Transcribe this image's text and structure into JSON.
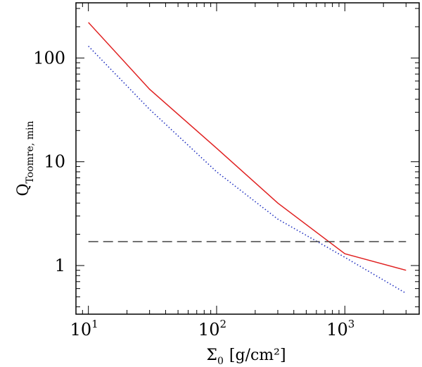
{
  "chart_data": {
    "type": "line",
    "xscale": "log",
    "yscale": "log",
    "xlim": [
      8,
      3800
    ],
    "ylim": [
      0.34,
      340
    ],
    "grid": false,
    "legend": "none",
    "x_ticks": [
      {
        "value": 10,
        "base": "10",
        "exp": "1"
      },
      {
        "value": 100,
        "base": "10",
        "exp": "2"
      },
      {
        "value": 1000,
        "base": "10",
        "exp": "3"
      }
    ],
    "y_ticks": [
      {
        "value": 1,
        "label": "1"
      },
      {
        "value": 10,
        "label": "10"
      },
      {
        "value": 100,
        "label": "100"
      }
    ],
    "xlabel": {
      "symbol": "Σ",
      "sub": "0",
      "rest": "[g/cm²]"
    },
    "ylabel": {
      "symbol": "Q",
      "sub": "Toomre, min"
    },
    "series": [
      {
        "style": "solid",
        "color": "#e02020",
        "x": [
          10,
          30,
          100,
          300,
          1000,
          3000
        ],
        "y": [
          220,
          50,
          13.5,
          4.0,
          1.3,
          0.9
        ]
      },
      {
        "style": "dotted",
        "color": "#2030c0",
        "x": [
          10,
          30,
          100,
          300,
          1000,
          3000
        ],
        "y": [
          130,
          32,
          8.0,
          2.8,
          1.2,
          0.54
        ]
      },
      {
        "style": "dashed",
        "color": "#444444",
        "x": [
          10,
          3000
        ],
        "y": [
          1.7,
          1.7
        ]
      }
    ]
  }
}
